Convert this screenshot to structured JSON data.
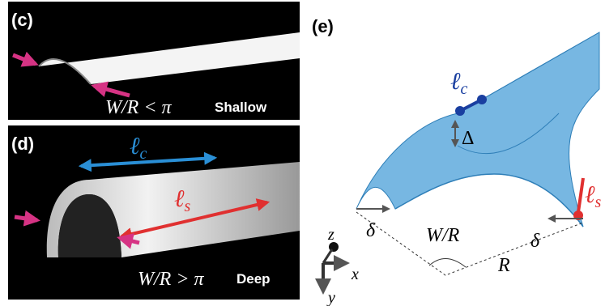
{
  "panels": [
    {
      "label": "(c)",
      "condition": "W/R < π",
      "regime": "Shallow"
    },
    {
      "label": "(d)",
      "crease_length": {
        "symbol": "ℓ",
        "subscript": "c"
      },
      "edge_length": {
        "symbol": "ℓ",
        "subscript": "s"
      },
      "condition": "W/R > π",
      "regime": "Deep"
    },
    {
      "label": "(e)",
      "crease_length": {
        "symbol": "ℓ",
        "subscript": "c"
      },
      "sag": "Δ",
      "edge_length": {
        "symbol": "ℓ",
        "subscript": "s"
      },
      "offset_left": "δ",
      "offset_right": "δ",
      "angle": "W/R",
      "radius": "R",
      "axes": {
        "z": "z",
        "x": "x",
        "y": "y"
      }
    }
  ]
}
